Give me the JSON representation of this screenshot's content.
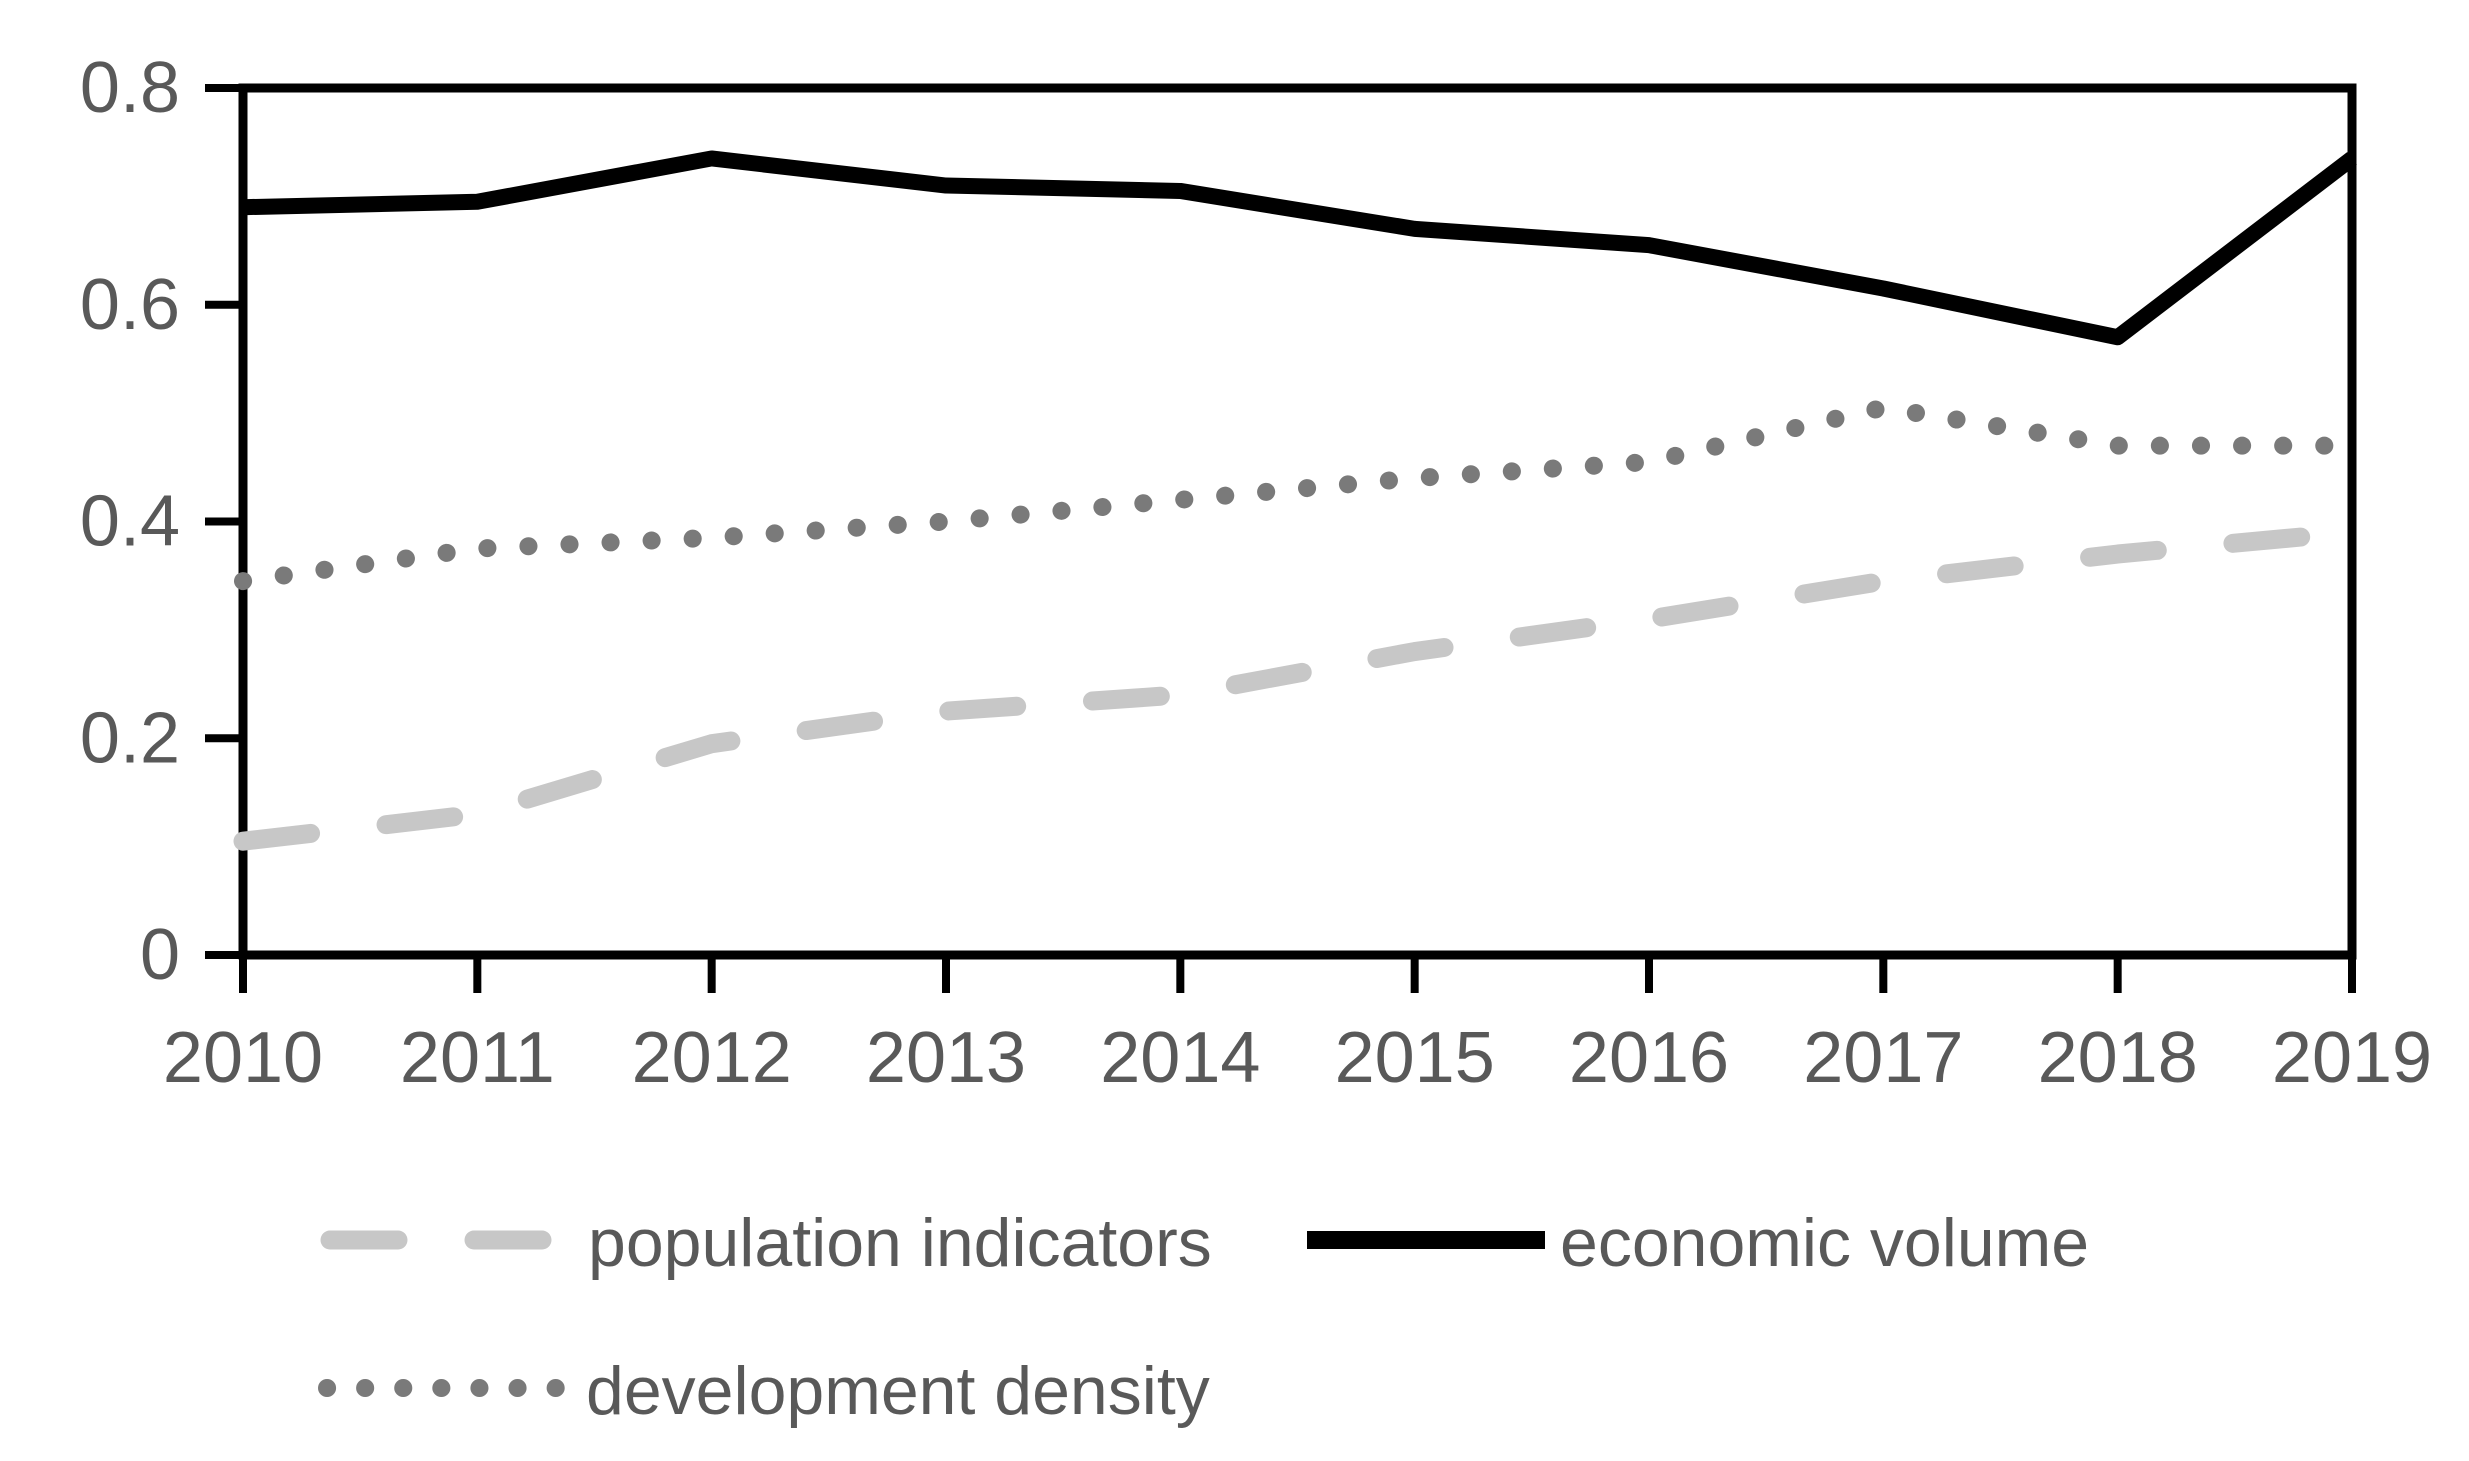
{
  "chart_data": {
    "type": "line",
    "title": "",
    "xlabel": "",
    "ylabel": "",
    "categories": [
      "2010",
      "2011",
      "2012",
      "2013",
      "2014",
      "2015",
      "2016",
      "2017",
      "2018",
      "2019"
    ],
    "x": [
      2010,
      2011,
      2012,
      2013,
      2014,
      2015,
      2016,
      2017,
      2018,
      2019
    ],
    "ylim": [
      0,
      0.8
    ],
    "y_ticks": [
      0,
      0.2,
      0.4,
      0.6,
      0.8
    ],
    "y_tick_labels": [
      "0",
      "0.2",
      "0.4",
      "0.6",
      "0.8"
    ],
    "grid": false,
    "legend_position": "bottom",
    "series": [
      {
        "name": "population indicators",
        "style": "dashed",
        "color": "#c7c7c7",
        "values": [
          0.105,
          0.13,
          0.195,
          0.225,
          0.24,
          0.28,
          0.31,
          0.345,
          0.37,
          0.39
        ]
      },
      {
        "name": "economic volume",
        "style": "solid",
        "color": "#000000",
        "values": [
          0.69,
          0.695,
          0.735,
          0.71,
          0.705,
          0.67,
          0.655,
          0.615,
          0.57,
          0.735
        ]
      },
      {
        "name": "development density",
        "style": "dotted",
        "color": "#7a7a7a",
        "values": [
          0.345,
          0.375,
          0.385,
          0.4,
          0.42,
          0.44,
          0.455,
          0.505,
          0.47,
          0.47
        ]
      }
    ]
  },
  "legend": {
    "population_label": "population indicators",
    "economic_label": "economic volume",
    "development_label": "development density"
  },
  "colors": {
    "axis_line": "#000000",
    "tick_text": "#595959",
    "background": "#ffffff"
  }
}
